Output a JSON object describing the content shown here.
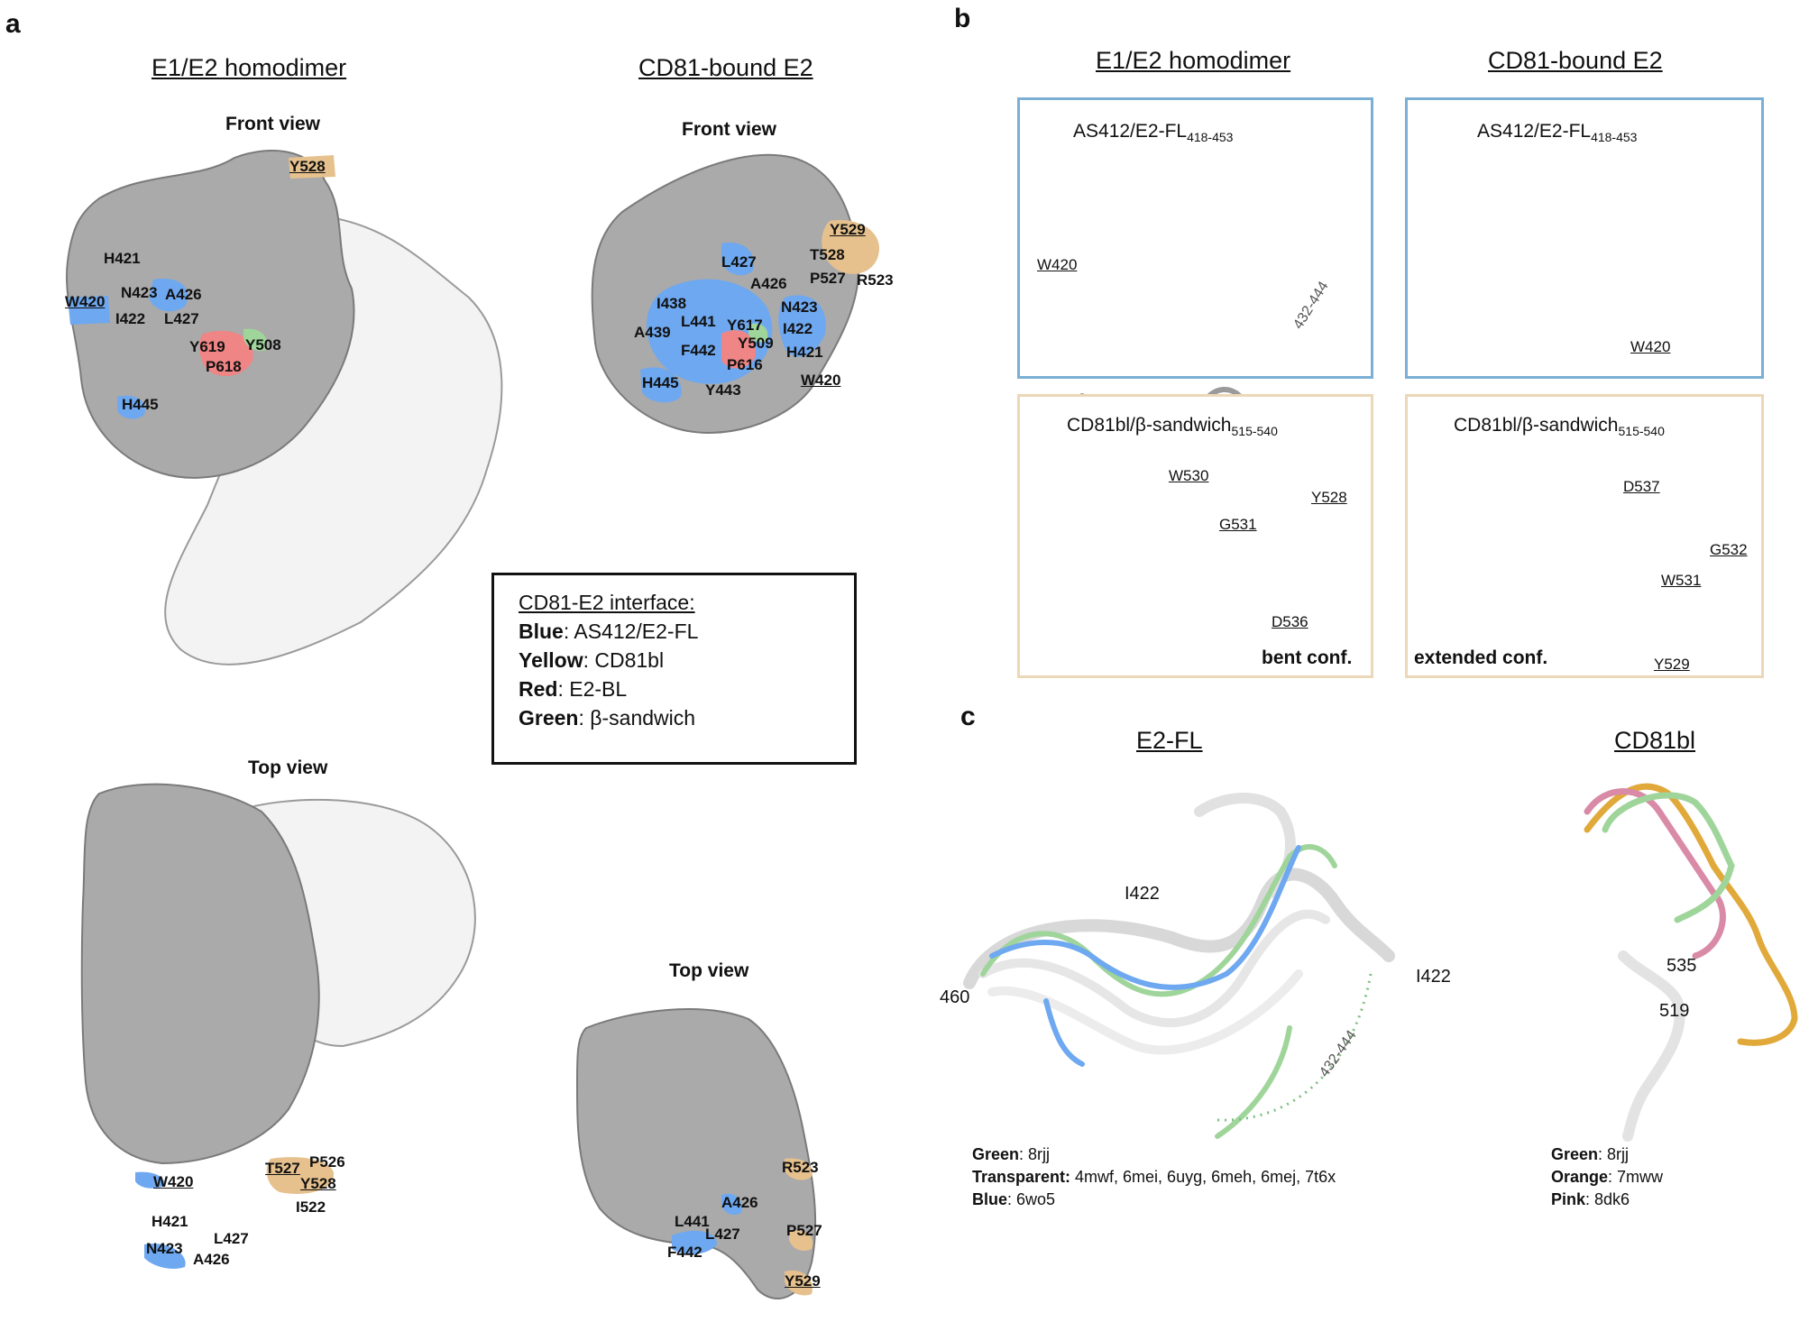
{
  "panel_a": {
    "letter": "a",
    "title_left": "E1/E2 homodimer",
    "title_right": "CD81-bound E2",
    "front_view": "Front view",
    "top_view": "Top view",
    "homodimer_front_labels": [
      "Y528",
      "H421",
      "N423",
      "A426",
      "W420",
      "I422",
      "L427",
      "Y619",
      "Y508",
      "P618",
      "H445"
    ],
    "cd81_front_labels": [
      "Y529",
      "L427",
      "T528",
      "A426",
      "P527",
      "R523",
      "I438",
      "N423",
      "L441",
      "Y617",
      "A439",
      "Y509",
      "I422",
      "F442",
      "H421",
      "P616",
      "W420",
      "H445",
      "Y443"
    ],
    "homodimer_top_labels": [
      "W420",
      "T527",
      "P526",
      "Y528",
      "I522",
      "H421",
      "L427",
      "N423",
      "A426"
    ],
    "cd81_top_labels": [
      "R523",
      "A426",
      "L441",
      "L427",
      "F442",
      "P527",
      "Y529"
    ]
  },
  "legend": {
    "title": "CD81-E2 interface:",
    "items": [
      {
        "key": "Blue",
        "text": ": AS412/E2-FL"
      },
      {
        "key": "Yellow",
        "text": ": CD81bl"
      },
      {
        "key": "Red",
        "text": ": E2-BL"
      },
      {
        "key": "Green",
        "text": ": β-sandwich"
      }
    ]
  },
  "panel_b": {
    "letter": "b",
    "title_left": "E1/E2 homodimer",
    "title_right": "CD81-bound E2",
    "box1": {
      "title": "AS412/E2-FL",
      "sub": "418-453",
      "labels": [
        "W420",
        "432-444"
      ]
    },
    "box2": {
      "title": "AS412/E2-FL",
      "sub": "418-453",
      "labels": [
        "W420"
      ]
    },
    "box3": {
      "title": "CD81bl/β-sandwich",
      "sub": "515-540",
      "labels": [
        "W530",
        "Y528",
        "G531",
        "D536"
      ],
      "conf": "bent conf."
    },
    "box4": {
      "title": "CD81bl/β-sandwich",
      "sub": "515-540",
      "labels": [
        "D537",
        "G532",
        "W531",
        "Y529"
      ],
      "conf": "extended conf."
    }
  },
  "panel_c": {
    "letter": "c",
    "title_left": "E2-FL",
    "title_right": "CD81bl",
    "left_labels": [
      "I422",
      "460",
      "I422",
      "432-444"
    ],
    "right_labels": [
      "535",
      "519"
    ],
    "left_key": [
      {
        "key": "Green",
        "text": ": 8rjj"
      },
      {
        "key": "Transparent:",
        "text": " 4mwf, 6mei, 6uyg, 6meh, 6mej, 7t6x"
      },
      {
        "key": "Blue",
        "text": ": 6wo5"
      }
    ],
    "right_key": [
      {
        "key": "Green",
        "text": ": 8rjj"
      },
      {
        "key": "Orange",
        "text": ": 7mww"
      },
      {
        "key": "Pink",
        "text": ": 8dk6"
      }
    ]
  },
  "colors": {
    "blue": "#6ea8f0",
    "yellow": "#e6c18d",
    "red": "#ef8585",
    "green": "#9fd59a",
    "grey": "#bdbdbd",
    "light": "#f2f2f2",
    "box_blue": "#7bafd4",
    "box_tan": "#ecd7b8",
    "orange": "#e0a93a",
    "pink": "#d98aa6"
  }
}
